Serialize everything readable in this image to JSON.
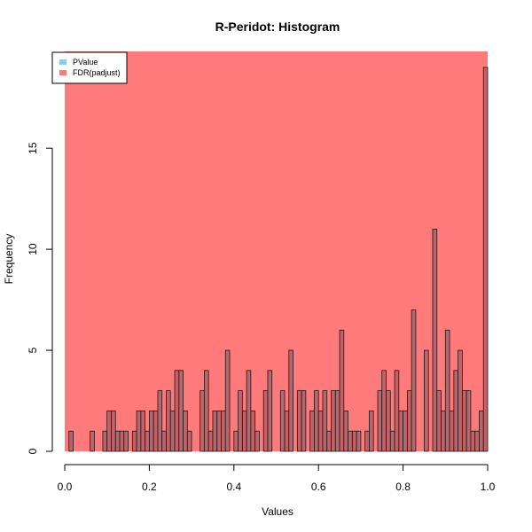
{
  "chart_data": {
    "type": "bar",
    "title": "R-Peridot: Histogram",
    "xlabel": "Values",
    "ylabel": "Frequency",
    "xlim": [
      0,
      1
    ],
    "ylim": [
      0,
      19
    ],
    "x_ticks": [
      "0.0",
      "0.2",
      "0.4",
      "0.6",
      "0.8",
      "1.0"
    ],
    "y_ticks": [
      "0",
      "5",
      "10",
      "15"
    ],
    "bin_width": 0.01,
    "legend": {
      "placement": "top-left",
      "entries": [
        {
          "label": "PValue",
          "color": "#87ceeb"
        },
        {
          "label": "FDR(padjust)",
          "color": "#ff7b7b"
        }
      ]
    },
    "series": [
      {
        "name": "FDR(padjust)",
        "color": "#ff7b7b",
        "values": [
          19
        ]
      },
      {
        "name": "PValue",
        "color": "#87ceeb",
        "values": [
          0,
          1,
          0,
          0,
          0,
          0,
          1,
          0,
          0,
          1,
          2,
          2,
          1,
          1,
          1,
          0,
          1,
          2,
          2,
          1,
          2,
          2,
          3,
          1,
          3,
          2,
          4,
          4,
          2,
          1,
          0,
          0,
          3,
          4,
          1,
          2,
          2,
          2,
          5,
          0,
          1,
          3,
          2,
          4,
          2,
          1,
          0,
          3,
          4,
          0,
          0,
          3,
          2,
          5,
          0,
          3,
          3,
          0,
          2,
          3,
          2,
          3,
          1,
          3,
          3,
          6,
          2,
          1,
          1,
          1,
          0,
          1,
          2,
          0,
          3,
          4,
          3,
          1,
          4,
          2,
          2,
          3,
          7,
          0,
          0,
          5,
          0,
          11,
          3,
          2,
          6,
          2,
          4,
          5,
          3,
          3,
          1,
          1,
          2,
          19
        ]
      }
    ]
  }
}
